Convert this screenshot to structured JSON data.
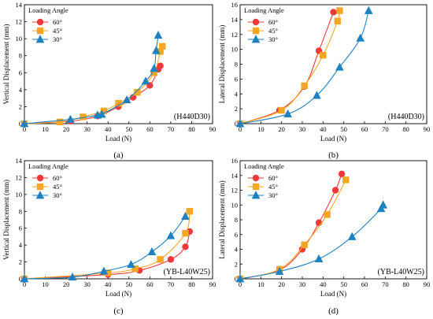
{
  "colors": {
    "60": "#f0393a",
    "45": "#f5a623",
    "30": "#1f82c0",
    "axis": "#000000"
  },
  "chart_data": [
    {
      "type": "line",
      "panel": "(a)",
      "tag": "(H440D30)",
      "xlabel": "Load (N)",
      "ylabel": "Vertical Displacement (mm)",
      "xlim": [
        0,
        90
      ],
      "ylim": [
        0,
        14
      ],
      "xticks": [
        0,
        10,
        20,
        30,
        40,
        50,
        60,
        70,
        80,
        90
      ],
      "yticks": [
        0,
        2,
        4,
        6,
        8,
        10,
        12,
        14
      ],
      "legend_title": "Loading Angle",
      "legend_position": "top-left",
      "series": [
        {
          "name": "60°",
          "marker": "circle",
          "x": [
            0,
            22,
            35,
            45,
            52,
            60,
            64,
            65
          ],
          "y": [
            0,
            0.3,
            0.9,
            2.0,
            3.1,
            4.5,
            6.4,
            6.8
          ]
        },
        {
          "name": "45°",
          "marker": "square",
          "x": [
            0,
            17,
            28,
            38,
            45,
            54,
            62,
            65,
            66
          ],
          "y": [
            0,
            0.2,
            0.8,
            1.5,
            2.4,
            3.7,
            6.0,
            8.5,
            9.1
          ]
        },
        {
          "name": "30°",
          "marker": "triangle",
          "x": [
            0,
            22,
            35,
            37,
            49,
            58,
            62,
            63,
            64
          ],
          "y": [
            0,
            0.5,
            1.0,
            1.1,
            2.8,
            5.0,
            6.5,
            8.6,
            10.4
          ]
        }
      ]
    },
    {
      "type": "line",
      "panel": "(b)",
      "tag": "(H440D30)",
      "xlabel": "Load (N)",
      "ylabel": "Lateral Displacement (mm)",
      "xlim": [
        0,
        90
      ],
      "ylim": [
        0,
        16
      ],
      "xticks": [
        0,
        10,
        20,
        30,
        40,
        50,
        60,
        70,
        80,
        90
      ],
      "yticks": [
        0,
        2,
        4,
        6,
        8,
        10,
        12,
        14,
        16
      ],
      "legend_title": "Loading Angle",
      "legend_position": "top-left",
      "series": [
        {
          "name": "60°",
          "marker": "circle",
          "x": [
            0,
            19,
            31,
            38,
            45
          ],
          "y": [
            0,
            1.8,
            5.0,
            9.8,
            15.0
          ]
        },
        {
          "name": "45°",
          "marker": "square",
          "x": [
            0,
            20,
            31,
            40,
            47,
            48
          ],
          "y": [
            0,
            1.8,
            5.1,
            9.2,
            13.8,
            15.2
          ]
        },
        {
          "name": "30°",
          "marker": "triangle",
          "x": [
            0,
            23,
            37,
            48,
            58,
            62
          ],
          "y": [
            0,
            1.3,
            3.8,
            7.6,
            11.5,
            15.2
          ]
        }
      ]
    },
    {
      "type": "line",
      "panel": "(c)",
      "tag": "(YB-L40W25)",
      "xlabel": "Load (N)",
      "ylabel": "Vertical Displacement (mm)",
      "xlim": [
        0,
        90
      ],
      "ylim": [
        0,
        14
      ],
      "xticks": [
        0,
        10,
        20,
        30,
        40,
        50,
        60,
        70,
        80,
        90
      ],
      "yticks": [
        0,
        2,
        4,
        6,
        8,
        10,
        12,
        14
      ],
      "legend_title": "Loading Angle",
      "legend_position": "top-left",
      "series": [
        {
          "name": "60°",
          "marker": "circle",
          "x": [
            0,
            40,
            55,
            70,
            77,
            79
          ],
          "y": [
            0,
            0.5,
            1.0,
            2.3,
            3.8,
            5.6
          ]
        },
        {
          "name": "45°",
          "marker": "square",
          "x": [
            0,
            40,
            53,
            65,
            77,
            79
          ],
          "y": [
            0,
            0.7,
            1.2,
            2.3,
            5.4,
            8.0
          ]
        },
        {
          "name": "30°",
          "marker": "triangle",
          "x": [
            0,
            23,
            38,
            51,
            61,
            70,
            77
          ],
          "y": [
            0,
            0.2,
            0.9,
            1.7,
            3.2,
            5.1,
            7.4
          ]
        }
      ]
    },
    {
      "type": "line",
      "panel": "(d)",
      "tag": "(YB-L40W25)",
      "xlabel": "Load (N)",
      "ylabel": "Lateral Displacement (mm)",
      "xlim": [
        0,
        90
      ],
      "ylim": [
        0,
        16
      ],
      "xticks": [
        0,
        10,
        20,
        30,
        40,
        50,
        60,
        70,
        80,
        90
      ],
      "yticks": [
        0,
        2,
        4,
        6,
        8,
        10,
        12,
        14,
        16
      ],
      "legend_title": "Loading Angle",
      "legend_position": "top-left",
      "series": [
        {
          "name": "60°",
          "marker": "circle",
          "x": [
            0,
            19,
            30,
            38,
            46,
            49
          ],
          "y": [
            0,
            1.2,
            4.0,
            7.6,
            12.0,
            14.2
          ]
        },
        {
          "name": "45°",
          "marker": "square",
          "x": [
            0,
            19,
            31,
            42,
            51
          ],
          "y": [
            0,
            1.3,
            4.6,
            8.7,
            13.4
          ]
        },
        {
          "name": "30°",
          "marker": "triangle",
          "x": [
            0,
            19,
            38,
            54,
            68,
            69
          ],
          "y": [
            0,
            1.0,
            2.7,
            5.7,
            9.5,
            10.0
          ]
        }
      ]
    }
  ]
}
